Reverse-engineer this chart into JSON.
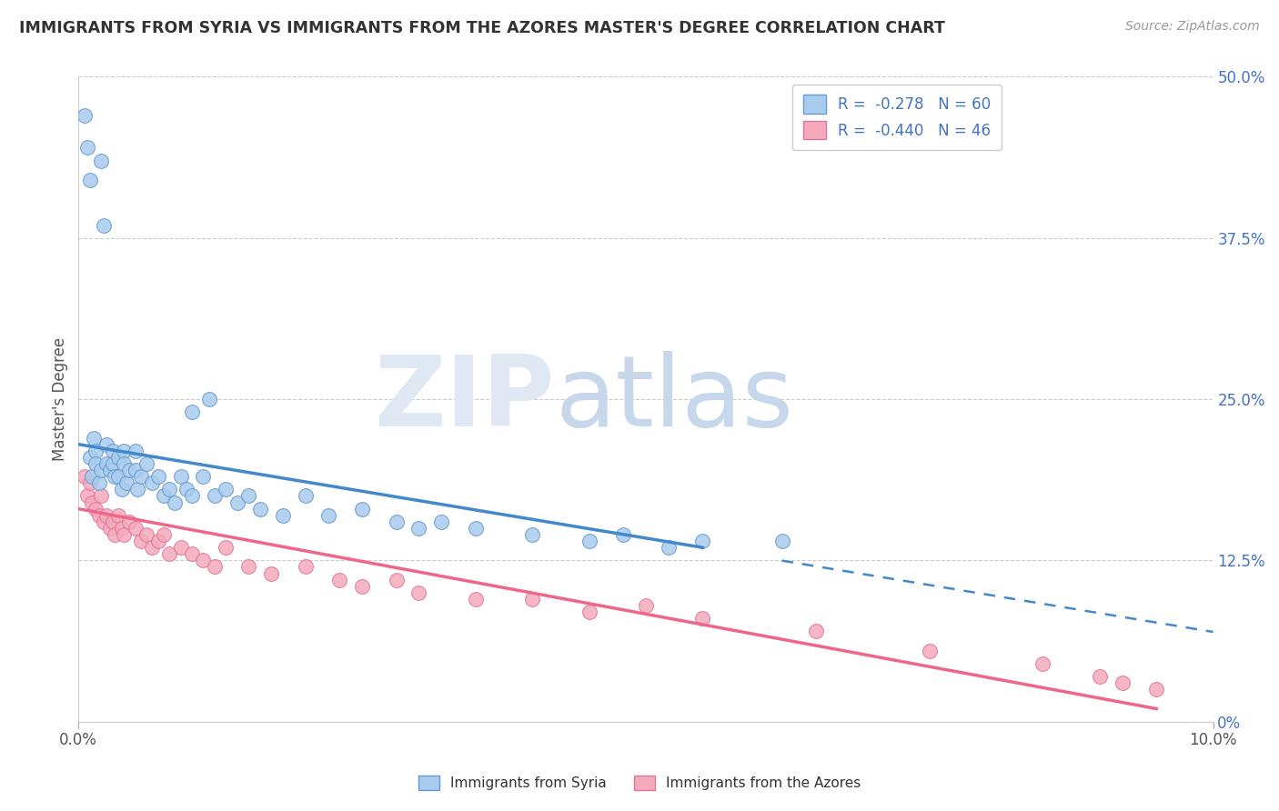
{
  "title": "IMMIGRANTS FROM SYRIA VS IMMIGRANTS FROM THE AZORES MASTER'S DEGREE CORRELATION CHART",
  "source": "Source: ZipAtlas.com",
  "ylabel": "Master's Degree",
  "right_tick_labels": [
    "0%",
    "12.5%",
    "25.0%",
    "37.5%",
    "50.0%"
  ],
  "right_tick_vals": [
    0,
    12.5,
    25.0,
    37.5,
    50.0
  ],
  "xmin": 0.0,
  "xmax": 10.0,
  "ymin": 0.0,
  "ymax": 50.0,
  "R_syria": -0.278,
  "N_syria": 60,
  "R_azores": -0.44,
  "N_azores": 46,
  "color_syria_fill": "#A8CCEE",
  "color_syria_edge": "#6699CC",
  "color_azores_fill": "#F5AABB",
  "color_azores_edge": "#DD7799",
  "color_syria_line": "#4488CC",
  "color_azores_line": "#EE6688",
  "color_text_blue": "#4472C4",
  "legend_R_text": "R =  -0.278   N = 60",
  "legend_R2_text": "R =  -0.440   N = 46",
  "syria_x": [
    0.05,
    0.08,
    0.1,
    0.1,
    0.12,
    0.13,
    0.15,
    0.15,
    0.18,
    0.2,
    0.2,
    0.22,
    0.25,
    0.25,
    0.28,
    0.3,
    0.3,
    0.32,
    0.35,
    0.35,
    0.38,
    0.4,
    0.4,
    0.42,
    0.45,
    0.5,
    0.5,
    0.52,
    0.55,
    0.6,
    0.65,
    0.7,
    0.75,
    0.8,
    0.85,
    0.9,
    0.95,
    1.0,
    1.1,
    1.2,
    1.3,
    1.4,
    1.5,
    1.6,
    1.8,
    2.0,
    2.2,
    2.5,
    2.8,
    3.0,
    3.2,
    3.5,
    4.0,
    4.5,
    4.8,
    5.2,
    5.5,
    6.2,
    1.15,
    1.0
  ],
  "syria_y": [
    47.0,
    44.5,
    42.0,
    20.5,
    19.0,
    22.0,
    21.0,
    20.0,
    18.5,
    43.5,
    19.5,
    38.5,
    21.5,
    20.0,
    19.5,
    21.0,
    20.0,
    19.0,
    20.5,
    19.0,
    18.0,
    21.0,
    20.0,
    18.5,
    19.5,
    21.0,
    19.5,
    18.0,
    19.0,
    20.0,
    18.5,
    19.0,
    17.5,
    18.0,
    17.0,
    19.0,
    18.0,
    17.5,
    19.0,
    17.5,
    18.0,
    17.0,
    17.5,
    16.5,
    16.0,
    17.5,
    16.0,
    16.5,
    15.5,
    15.0,
    15.5,
    15.0,
    14.5,
    14.0,
    14.5,
    13.5,
    14.0,
    14.0,
    25.0,
    24.0
  ],
  "azores_x": [
    0.05,
    0.08,
    0.1,
    0.12,
    0.15,
    0.18,
    0.2,
    0.22,
    0.25,
    0.28,
    0.3,
    0.32,
    0.35,
    0.38,
    0.4,
    0.45,
    0.5,
    0.55,
    0.6,
    0.65,
    0.7,
    0.75,
    0.8,
    0.9,
    1.0,
    1.1,
    1.2,
    1.3,
    1.5,
    1.7,
    2.0,
    2.3,
    2.5,
    2.8,
    3.0,
    3.5,
    4.0,
    4.5,
    5.0,
    5.5,
    6.5,
    7.5,
    8.5,
    9.0,
    9.2,
    9.5
  ],
  "azores_y": [
    19.0,
    17.5,
    18.5,
    17.0,
    16.5,
    16.0,
    17.5,
    15.5,
    16.0,
    15.0,
    15.5,
    14.5,
    16.0,
    15.0,
    14.5,
    15.5,
    15.0,
    14.0,
    14.5,
    13.5,
    14.0,
    14.5,
    13.0,
    13.5,
    13.0,
    12.5,
    12.0,
    13.5,
    12.0,
    11.5,
    12.0,
    11.0,
    10.5,
    11.0,
    10.0,
    9.5,
    9.5,
    8.5,
    9.0,
    8.0,
    7.0,
    5.5,
    4.5,
    3.5,
    3.0,
    2.5
  ],
  "syria_line_x0": 0.0,
  "syria_line_y0": 21.5,
  "syria_line_x1": 5.5,
  "syria_line_y1": 13.5,
  "azores_line_x0": 0.0,
  "azores_line_y0": 16.5,
  "azores_line_x1": 9.5,
  "azores_line_y1": 1.0
}
